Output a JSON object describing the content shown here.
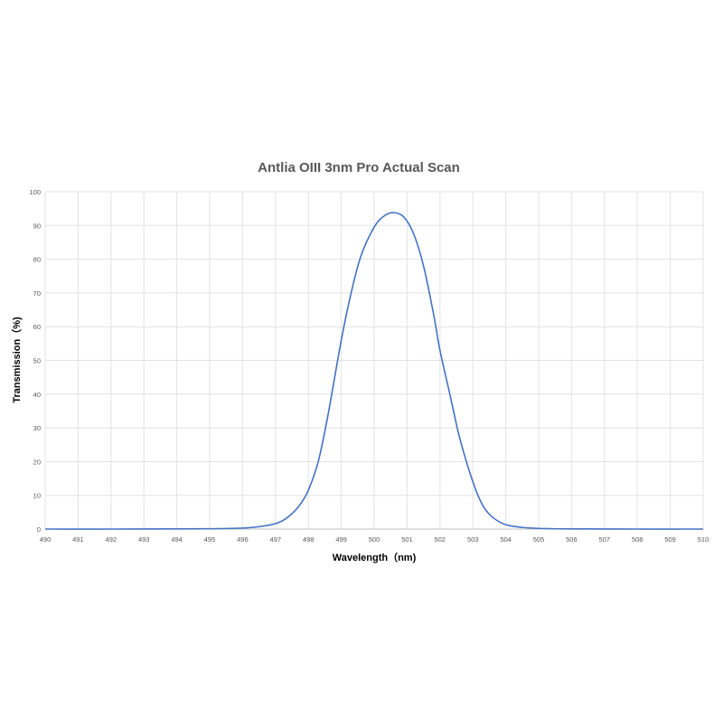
{
  "chart_data": {
    "type": "line",
    "title": "Antlia OIII 3nm Pro Actual Scan",
    "xlabel": "Wavelength（nm)",
    "ylabel": "Transmission（%)",
    "xlim": [
      490,
      510
    ],
    "ylim": [
      0,
      100
    ],
    "xticks": [
      490,
      491,
      492,
      493,
      494,
      495,
      496,
      497,
      498,
      499,
      500,
      501,
      502,
      503,
      504,
      505,
      506,
      507,
      508,
      509,
      510
    ],
    "yticks": [
      0,
      10,
      20,
      30,
      40,
      50,
      60,
      70,
      80,
      90,
      100
    ],
    "grid": true,
    "legend": "none",
    "color": "#4472C4",
    "series": [
      {
        "x": [
          490,
          492,
          494,
          495,
          496,
          496.5,
          497,
          497.3,
          497.6,
          497.8,
          498,
          498.3,
          498.6,
          499,
          499.3,
          499.6,
          500,
          500.3,
          500.6,
          500.9,
          501.2,
          501.5,
          501.8,
          502,
          502.3,
          502.6,
          503,
          503.3,
          503.6,
          504,
          504.5,
          505,
          506,
          508,
          510
        ],
        "y": [
          0,
          0,
          0.05,
          0.1,
          0.3,
          0.7,
          1.6,
          3,
          5.5,
          8,
          11.5,
          20,
          34,
          56,
          70,
          81,
          89.5,
          92.8,
          93.8,
          92.5,
          87.5,
          78,
          64,
          53,
          40,
          27,
          14,
          7,
          3.5,
          1.3,
          0.5,
          0.2,
          0.05,
          0,
          0
        ]
      }
    ]
  }
}
